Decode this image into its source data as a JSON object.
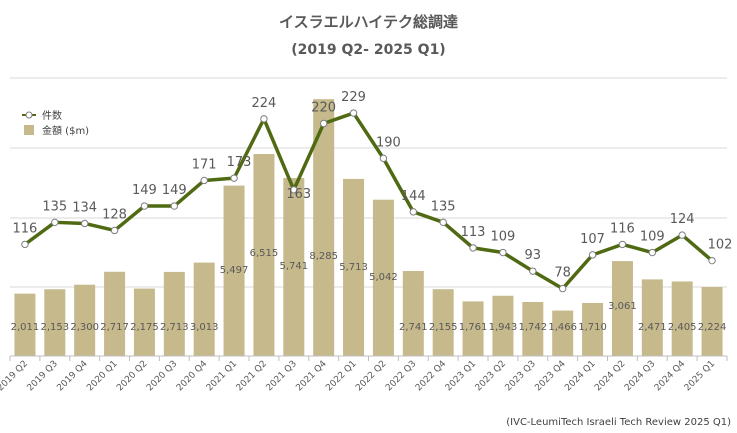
{
  "chart_data": {
    "type": "bar+line",
    "title": "イスラエルハイテク総調達",
    "subtitle": "(2019 Q2- 2025 Q1)",
    "categories": [
      "2019 Q2",
      "2019 Q3",
      "2019 Q4",
      "2020 Q1",
      "2020 Q2",
      "2020 Q3",
      "2020 Q4",
      "2021 Q1",
      "2021 Q2",
      "2021 Q3",
      "2021 Q4",
      "2022 Q1",
      "2022 Q2",
      "2022 Q3",
      "2022 Q4",
      "2023 Q1",
      "2023 Q2",
      "2023 Q3",
      "2023 Q4",
      "2024 Q1",
      "2024 Q2",
      "2024 Q3",
      "2024 Q4",
      "2025 Q1"
    ],
    "series": [
      {
        "name": "件数",
        "type": "line",
        "values": [
          116,
          135,
          134,
          128,
          149,
          149,
          171,
          173,
          224,
          163,
          220,
          229,
          190,
          144,
          135,
          113,
          109,
          93,
          78,
          107,
          116,
          109,
          124,
          102
        ],
        "labels": [
          "116",
          "135",
          "134",
          "128",
          "149",
          "149",
          "171",
          "173",
          "224",
          "163",
          "220",
          "229",
          "190",
          "144",
          "135",
          "113",
          "109",
          "93",
          "78",
          "107",
          "116",
          "109",
          "124",
          "102"
        ]
      },
      {
        "name": "金額 ($m)",
        "type": "bar",
        "values": [
          2011,
          2153,
          2300,
          2717,
          2175,
          2713,
          3013,
          5497,
          6515,
          5741,
          8285,
          5713,
          5042,
          2741,
          2155,
          1761,
          1943,
          1742,
          1466,
          1710,
          3061,
          2471,
          2405,
          2224
        ],
        "labels": [
          "2,011",
          "2,153",
          "2,300",
          "2,717",
          "2,175",
          "2,713",
          "3,013",
          "5,497",
          "6,515",
          "5,741",
          "8,285",
          "5,713",
          "5,042",
          "2,741",
          "2,155",
          "1,761",
          "1,943",
          "1,742",
          "1,466",
          "1,710",
          "3,061",
          "2,471",
          "2,405",
          "2,224"
        ]
      }
    ],
    "bar_ylim": [
      0,
      9000
    ],
    "line_ylim": [
      20,
      260
    ],
    "grid": true,
    "legend": "top-left",
    "colors": {
      "bar": "#c6b98c",
      "line": "#4f6a12",
      "marker_fill": "#ffffff",
      "marker_stroke": "#7f7f7f",
      "grid": "#d9d9d9"
    }
  },
  "source": "(IVC-LeumiTech Israeli Tech Review 2025 Q1)"
}
